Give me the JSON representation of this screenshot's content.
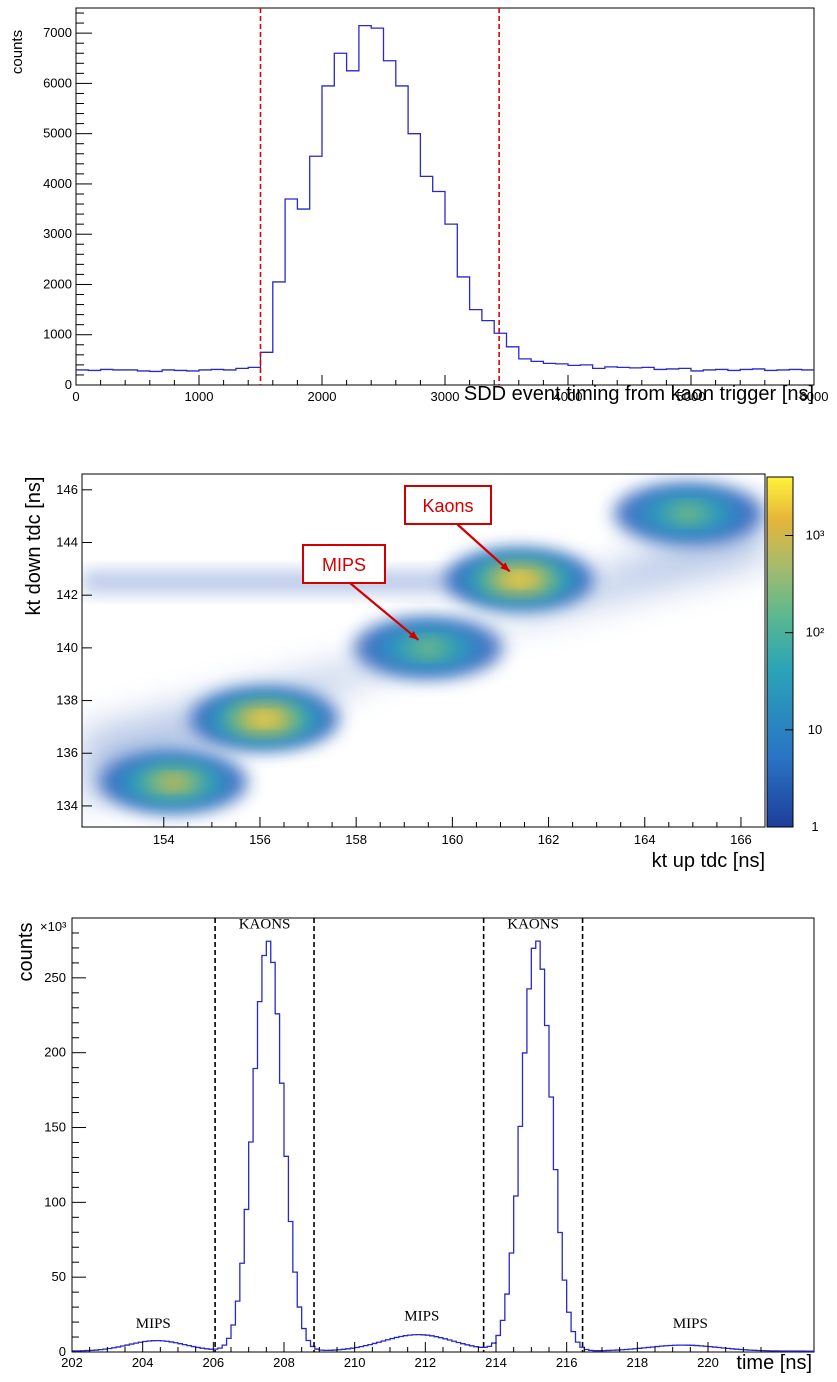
{
  "chart_data": [
    {
      "type": "histogram",
      "xlabel": "SDD event timing from kaon trigger [ns]",
      "ylabel": "counts",
      "xlim": [
        0,
        6000
      ],
      "ylim": [
        0,
        7500
      ],
      "x_ticks": [
        0,
        1000,
        2000,
        3000,
        4000,
        5000,
        6000
      ],
      "y_ticks": [
        0,
        1000,
        2000,
        3000,
        4000,
        5000,
        6000,
        7000
      ],
      "bin_width": 100,
      "bin_starts": [
        0,
        100,
        200,
        300,
        400,
        500,
        600,
        700,
        800,
        900,
        1000,
        1100,
        1200,
        1300,
        1400,
        1500,
        1600,
        1700,
        1800,
        1900,
        2000,
        2100,
        2200,
        2300,
        2400,
        2500,
        2600,
        2700,
        2800,
        2900,
        3000,
        3100,
        3200,
        3300,
        3400,
        3500,
        3600,
        3700,
        3800,
        3900,
        4000,
        4100,
        4200,
        4300,
        4400,
        4500,
        4600,
        4700,
        4800,
        4900,
        5000,
        5100,
        5200,
        5300,
        5400,
        5500,
        5600,
        5700,
        5800,
        5900
      ],
      "values": [
        300,
        290,
        310,
        300,
        300,
        280,
        270,
        300,
        290,
        280,
        300,
        310,
        300,
        330,
        350,
        650,
        2050,
        3700,
        3500,
        4550,
        5950,
        6600,
        6250,
        7150,
        7100,
        6450,
        5950,
        5000,
        4150,
        3850,
        3200,
        2150,
        1500,
        1280,
        1030,
        760,
        520,
        470,
        430,
        420,
        390,
        400,
        330,
        360,
        350,
        340,
        350,
        310,
        320,
        330,
        280,
        300,
        310,
        290,
        310,
        320,
        290,
        300,
        310,
        300
      ],
      "cut_lines": [
        1500,
        3440
      ],
      "series_color": "#2929c8",
      "cut_color": "#e00000"
    },
    {
      "type": "heatmap",
      "xlabel": "kt up tdc [ns]",
      "ylabel": "kt down tdc [ns]",
      "xlim": [
        152.3,
        166.5
      ],
      "ylim": [
        133.2,
        146.6
      ],
      "x_ticks": [
        154,
        156,
        158,
        160,
        162,
        164,
        166
      ],
      "y_ticks": [
        134,
        136,
        138,
        140,
        142,
        144,
        146
      ],
      "z_scale": "log",
      "colorbar_ticks": [
        {
          "value": 1,
          "label": "1"
        },
        {
          "value": 10,
          "label": "10"
        },
        {
          "value": 100,
          "label": "10²"
        },
        {
          "value": 1000,
          "label": "10³"
        }
      ],
      "colorbar_range": [
        1,
        4000
      ],
      "clusters": [
        {
          "x": 154.2,
          "y": 134.9,
          "peak": 400
        },
        {
          "x": 156.1,
          "y": 137.3,
          "peak": 3000
        },
        {
          "x": 159.5,
          "y": 140.0,
          "peak": 300
        },
        {
          "x": 161.4,
          "y": 142.6,
          "peak": 3500
        },
        {
          "x": 164.9,
          "y": 145.1,
          "peak": 120
        }
      ],
      "annotations": [
        {
          "text": "Kaons",
          "x": 161.4,
          "y": 142.6
        },
        {
          "text": "MIPS",
          "x": 159.5,
          "y": 140.0
        }
      ],
      "annotation_color": "#d40000"
    },
    {
      "type": "histogram",
      "xlabel": "time [ns]",
      "ylabel": "counts",
      "y_multiplier": "×10³",
      "xlim": [
        202,
        223
      ],
      "ylim": [
        0,
        290
      ],
      "x_ticks": [
        202,
        204,
        206,
        208,
        210,
        212,
        214,
        216,
        218,
        220
      ],
      "y_ticks": [
        0,
        50,
        100,
        150,
        200,
        250
      ],
      "bin_width": 0.125,
      "peaks": [
        {
          "center": 207.55,
          "height": 274,
          "sigma": 0.42
        },
        {
          "center": 215.15,
          "height": 275,
          "sigma": 0.42
        },
        {
          "center": 204.4,
          "height": 7,
          "sigma": 0.8
        },
        {
          "center": 211.8,
          "height": 11,
          "sigma": 1.0
        },
        {
          "center": 219.3,
          "height": 4,
          "sigma": 1.0
        }
      ],
      "cut_lines": [
        206.05,
        208.85,
        213.65,
        216.45
      ],
      "region_labels": [
        {
          "text": "KAONS",
          "x": 207.45,
          "y": 283
        },
        {
          "text": "KAONS",
          "x": 215.05,
          "y": 283
        },
        {
          "text": "MIPS",
          "x": 204.3,
          "y": 16
        },
        {
          "text": "MIPS",
          "x": 211.9,
          "y": 21
        },
        {
          "text": "MIPS",
          "x": 219.5,
          "y": 16
        }
      ],
      "series_color": "#2929c8",
      "cut_color": "#000000"
    }
  ]
}
